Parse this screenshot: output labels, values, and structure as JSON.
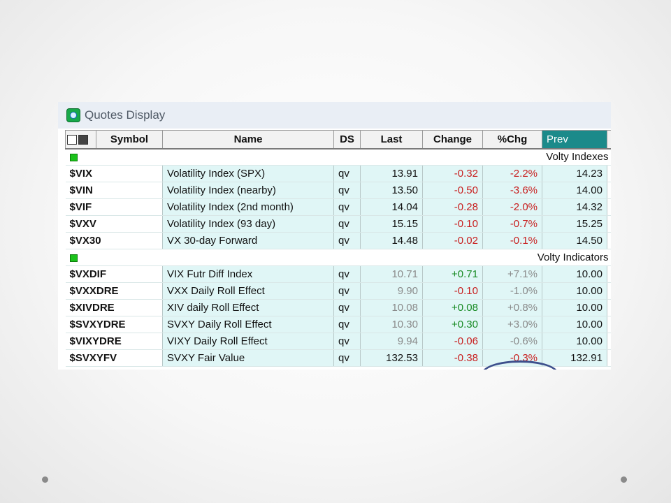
{
  "window": {
    "title": "Quotes Display"
  },
  "columns": {
    "symbol": "Symbol",
    "name": "Name",
    "ds": "DS",
    "last": "Last",
    "change": "Change",
    "pctchg": "%Chg",
    "prev": "Prev"
  },
  "groups": [
    {
      "label": "Volty Indexes",
      "rows": [
        {
          "symbol": "$VIX",
          "name": "Volatility Index (SPX)",
          "ds": "qv",
          "last": "13.91",
          "change": "-0.32",
          "pctchg": "-2.2%",
          "prev": "14.23"
        },
        {
          "symbol": "$VIN",
          "name": "Volatility Index (nearby)",
          "ds": "qv",
          "last": "13.50",
          "change": "-0.50",
          "pctchg": "-3.6%",
          "prev": "14.00"
        },
        {
          "symbol": "$VIF",
          "name": "Volatility Index (2nd month)",
          "ds": "qv",
          "last": "14.04",
          "change": "-0.28",
          "pctchg": "-2.0%",
          "prev": "14.32"
        },
        {
          "symbol": "$VXV",
          "name": "Volatility Index (93 day)",
          "ds": "qv",
          "last": "15.15",
          "change": "-0.10",
          "pctchg": "-0.7%",
          "prev": "15.25"
        },
        {
          "symbol": "$VX30",
          "name": "VX 30-day Forward",
          "ds": "qv",
          "last": "14.48",
          "change": "-0.02",
          "pctchg": "-0.1%",
          "prev": "14.50"
        }
      ]
    },
    {
      "label": "Volty Indicators",
      "rows": [
        {
          "symbol": "$VXDIF",
          "name": "VIX Futr Diff Index",
          "ds": "qv",
          "last": "10.71",
          "change": "+0.71",
          "pctchg": "+7.1%",
          "prev": "10.00"
        },
        {
          "symbol": "$VXXDRE",
          "name": "VXX Daily Roll Effect",
          "ds": "qv",
          "last": "9.90",
          "change": "-0.10",
          "pctchg": "-1.0%",
          "prev": "10.00"
        },
        {
          "symbol": "$XIVDRE",
          "name": "XIV daily Roll Effect",
          "ds": "qv",
          "last": "10.08",
          "change": "+0.08",
          "pctchg": "+0.8%",
          "prev": "10.00"
        },
        {
          "symbol": "$SVXYDRE",
          "name": "SVXY Daily Roll Effect",
          "ds": "qv",
          "last": "10.30",
          "change": "+0.30",
          "pctchg": "+3.0%",
          "prev": "10.00"
        },
        {
          "symbol": "$VIXYDRE",
          "name": "VIXY Daily Roll Effect",
          "ds": "qv",
          "last": "9.94",
          "change": "-0.06",
          "pctchg": "-0.6%",
          "prev": "10.00"
        },
        {
          "symbol": "$SVXYFV",
          "name": "SVXY Fair Value",
          "ds": "qv",
          "last": "132.53",
          "change": "-0.38",
          "pctchg": "-0.3%",
          "prev": "132.91"
        }
      ]
    }
  ],
  "icons": {
    "app": "quotes-app-icon",
    "print": "printer-icon",
    "save": "save-disk-icon",
    "group_marker": "green-square-icon"
  },
  "colors": {
    "negative": "#c81e1e",
    "positive": "#178a23",
    "row_bg": "#e0f6f6",
    "prev_header_bg": "#1b8a8a",
    "annotation": "#3d4f8c"
  }
}
